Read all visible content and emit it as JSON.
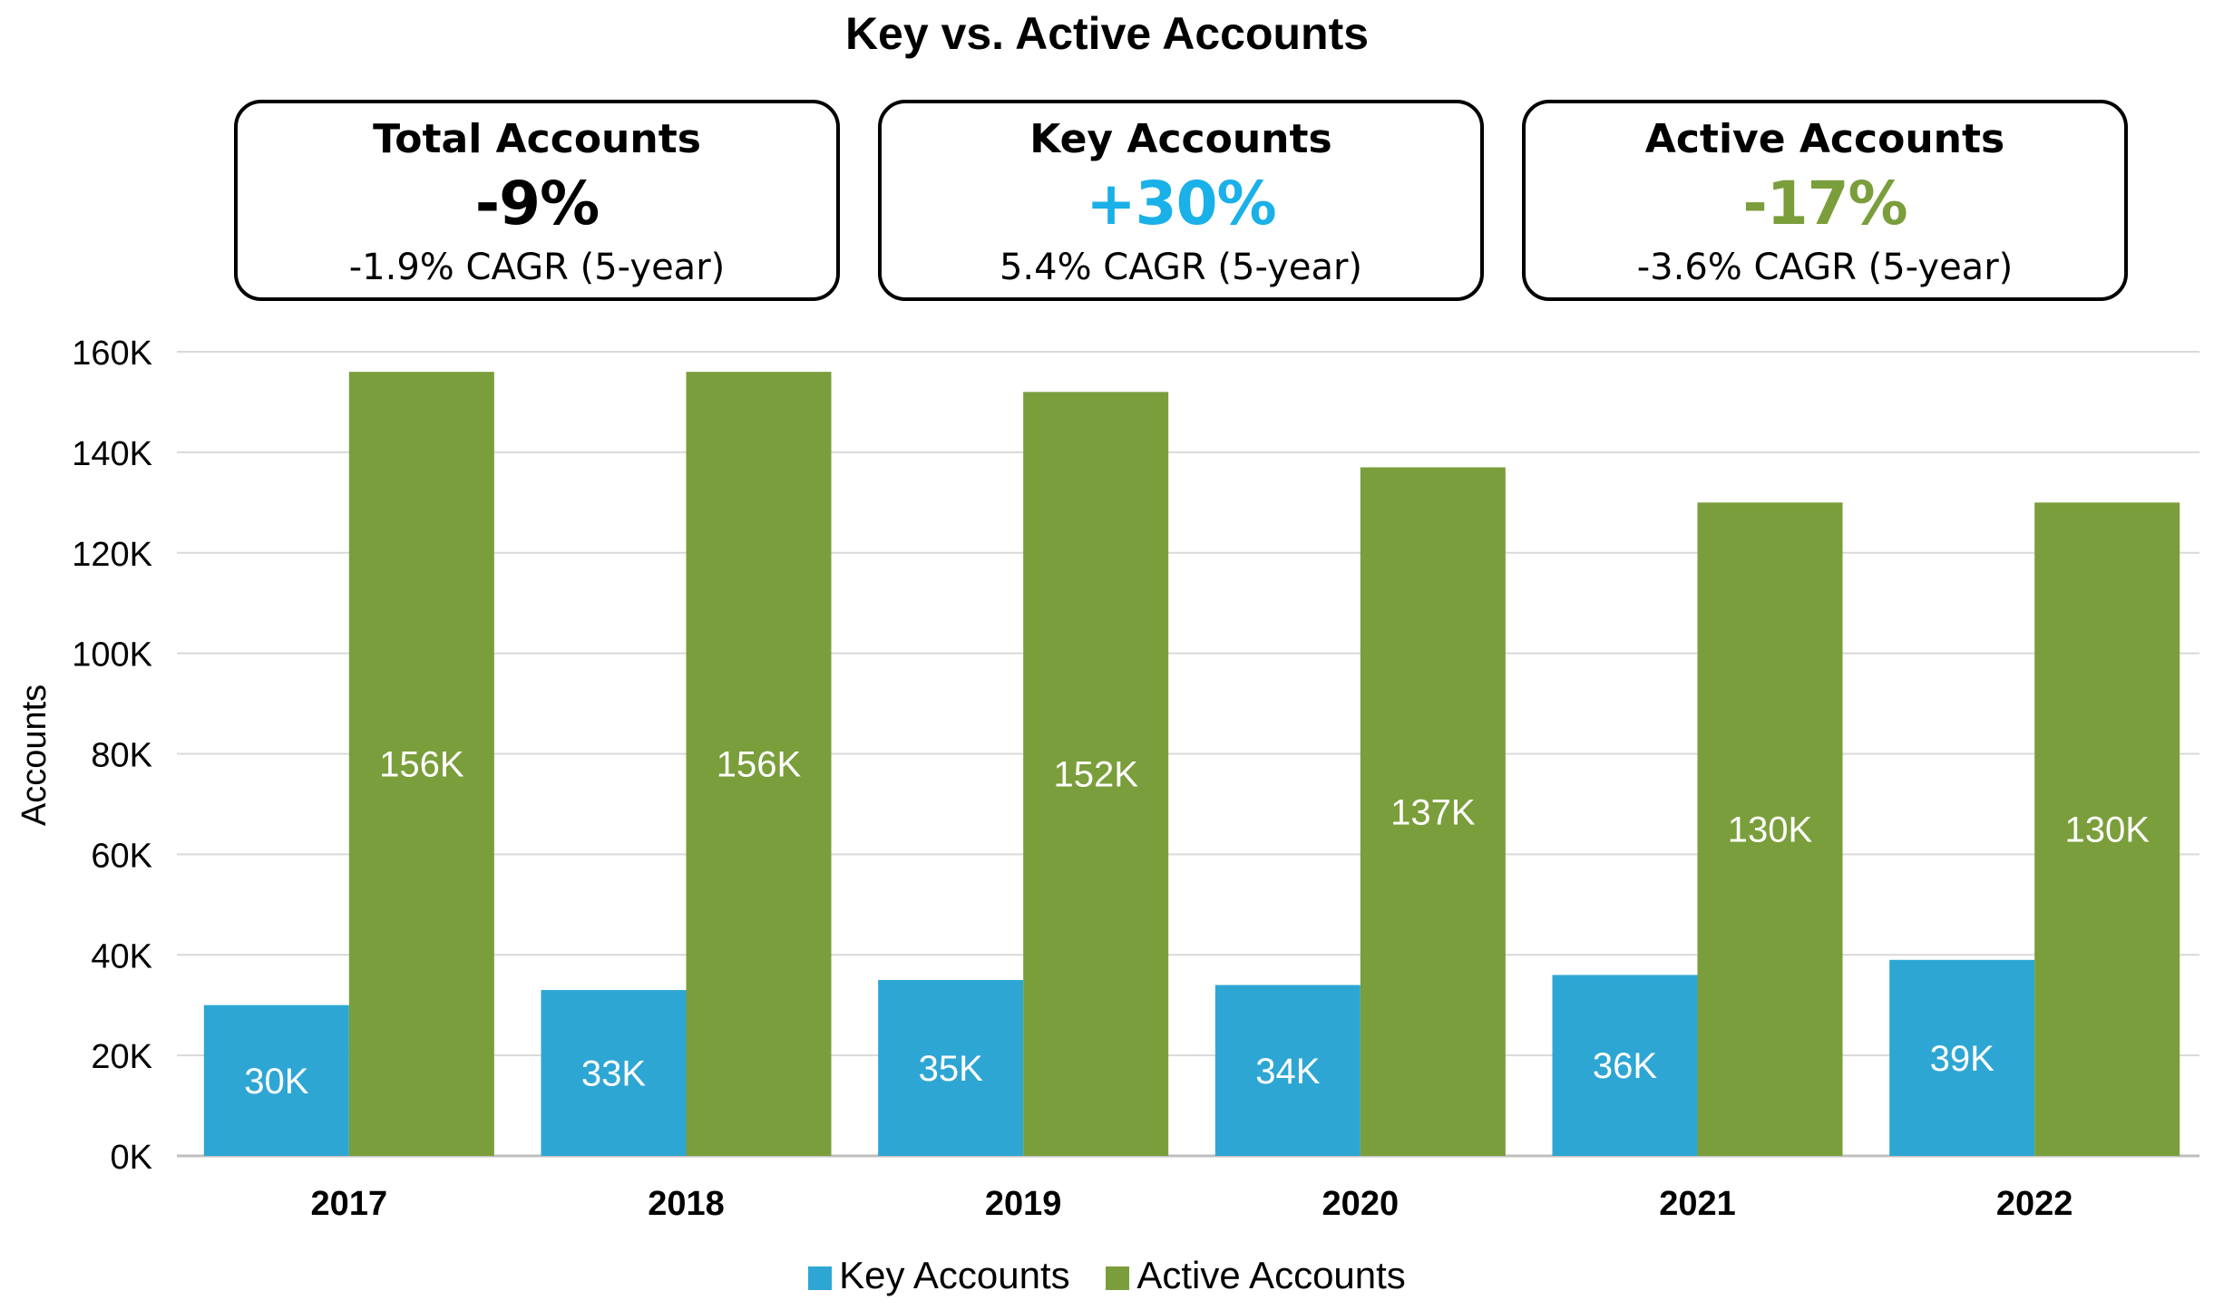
{
  "chart_data": {
    "type": "bar",
    "title": "Key vs. Active Accounts",
    "xlabel": "",
    "ylabel": "Accounts",
    "ylim": [
      0,
      160000
    ],
    "yticks": [
      0,
      20000,
      40000,
      60000,
      80000,
      100000,
      120000,
      140000,
      160000
    ],
    "ytick_labels": [
      "0K",
      "20K",
      "40K",
      "60K",
      "80K",
      "100K",
      "120K",
      "140K",
      "160K"
    ],
    "grid": true,
    "legend_position": "bottom-center",
    "categories": [
      "2017",
      "2018",
      "2019",
      "2020",
      "2021",
      "2022"
    ],
    "series": [
      {
        "name": "Key Accounts",
        "color": "#2ea6d4",
        "values": [
          30000,
          33000,
          35000,
          34000,
          36000,
          39000
        ],
        "labels": [
          "30K",
          "33K",
          "35K",
          "34K",
          "36K",
          "39K"
        ]
      },
      {
        "name": "Active Accounts",
        "color": "#7a9e3b",
        "values": [
          156000,
          156000,
          152000,
          137000,
          130000,
          130000
        ],
        "labels": [
          "156K",
          "156K",
          "152K",
          "137K",
          "130K",
          "130K"
        ]
      }
    ]
  },
  "kpis": [
    {
      "label": "Total Accounts",
      "value": "-9%",
      "sub": "-1.9% CAGR (5-year)",
      "color": "#000000"
    },
    {
      "label": "Key Accounts",
      "value": "+30%",
      "sub": "5.4% CAGR (5-year)",
      "color": "#1ab0e8"
    },
    {
      "label": "Active Accounts",
      "value": "-17%",
      "sub": "-3.6% CAGR (5-year)",
      "color": "#7a9e3b"
    }
  ]
}
